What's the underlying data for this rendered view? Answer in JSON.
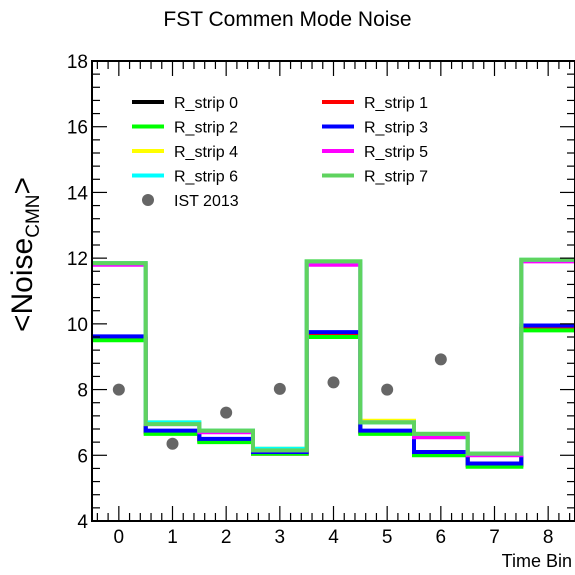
{
  "chart_data": {
    "type": "line",
    "title": "FST Commen Mode Noise",
    "ylabel_main": "<Noise",
    "ylabel_sub": "CMN",
    "ylabel_end": ">",
    "xlabel": "Time Bin",
    "xlim": [
      -0.5,
      8.5
    ],
    "ylim": [
      4,
      18
    ],
    "x_ticks": [
      0,
      1,
      2,
      3,
      4,
      5,
      6,
      7,
      8
    ],
    "y_ticks": [
      4,
      6,
      8,
      10,
      12,
      14,
      16,
      18
    ],
    "grid": false,
    "legend_position": "top-left",
    "series": [
      {
        "name": "R_strip 0",
        "color": "#000000",
        "values": [
          9.55,
          6.7,
          6.45,
          6.05,
          9.65,
          6.7,
          6.05,
          5.7,
          9.85
        ]
      },
      {
        "name": "R_strip 1",
        "color": "#ff0000",
        "values": [
          9.55,
          6.7,
          6.45,
          6.05,
          9.65,
          6.7,
          6.05,
          5.7,
          9.85
        ]
      },
      {
        "name": "R_strip 2",
        "color": "#00ff00",
        "values": [
          9.5,
          6.65,
          6.4,
          6.05,
          9.6,
          6.65,
          6.0,
          5.65,
          9.8
        ]
      },
      {
        "name": "R_strip 3",
        "color": "#0000ff",
        "values": [
          9.62,
          6.75,
          6.5,
          6.1,
          9.75,
          6.75,
          6.1,
          5.75,
          9.95
        ]
      },
      {
        "name": "R_strip 4",
        "color": "#ffff00",
        "values": [
          11.85,
          7.0,
          6.75,
          6.2,
          11.9,
          7.05,
          6.65,
          6.05,
          11.95
        ]
      },
      {
        "name": "R_strip 5",
        "color": "#ff00ff",
        "values": [
          11.8,
          6.95,
          6.7,
          6.15,
          11.8,
          7.0,
          6.55,
          6.0,
          11.9
        ]
      },
      {
        "name": "R_strip 6",
        "color": "#00ffff",
        "values": [
          11.85,
          7.0,
          6.75,
          6.2,
          11.9,
          7.0,
          6.65,
          6.05,
          11.95
        ]
      },
      {
        "name": "R_strip 7",
        "color": "#5fd35f",
        "values": [
          11.85,
          6.95,
          6.75,
          6.15,
          11.9,
          7.0,
          6.65,
          6.05,
          11.95
        ]
      }
    ],
    "points": {
      "name": "IST 2013",
      "color": "#666666",
      "x": [
        0,
        1,
        2,
        3,
        4,
        5,
        6
      ],
      "y": [
        8.0,
        6.35,
        7.3,
        8.02,
        8.22,
        8.0,
        8.92
      ]
    }
  }
}
